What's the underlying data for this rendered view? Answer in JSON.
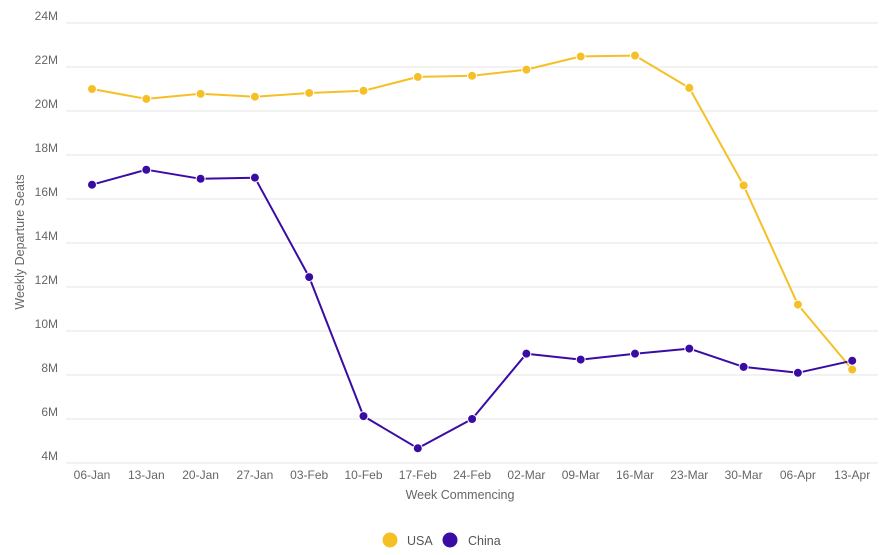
{
  "chart_data": {
    "type": "line",
    "categories": [
      "06-Jan",
      "13-Jan",
      "20-Jan",
      "27-Jan",
      "03-Feb",
      "10-Feb",
      "17-Feb",
      "24-Feb",
      "02-Mar",
      "09-Mar",
      "16-Mar",
      "23-Mar",
      "30-Mar",
      "06-Apr",
      "13-Apr"
    ],
    "series": [
      {
        "name": "USA",
        "color": "#f5c026",
        "values": [
          21.0,
          20.55,
          20.78,
          20.65,
          20.82,
          20.92,
          21.55,
          21.6,
          21.88,
          22.48,
          22.52,
          21.05,
          16.62,
          11.2,
          8.25
        ]
      },
      {
        "name": "China",
        "color": "#3a0ca3",
        "values": [
          16.65,
          17.33,
          16.92,
          16.97,
          12.45,
          6.13,
          4.67,
          6.0,
          8.97,
          8.7,
          8.97,
          9.2,
          8.37,
          8.1,
          8.65
        ]
      }
    ],
    "yticks": [
      "4M",
      "6M",
      "8M",
      "10M",
      "12M",
      "14M",
      "16M",
      "18M",
      "20M",
      "22M",
      "24M"
    ],
    "ylim": [
      4,
      24
    ],
    "xlabel": "Week Commencing",
    "ylabel": "Weekly Departure Seats",
    "grid": true,
    "legend_position": "bottom-center"
  }
}
